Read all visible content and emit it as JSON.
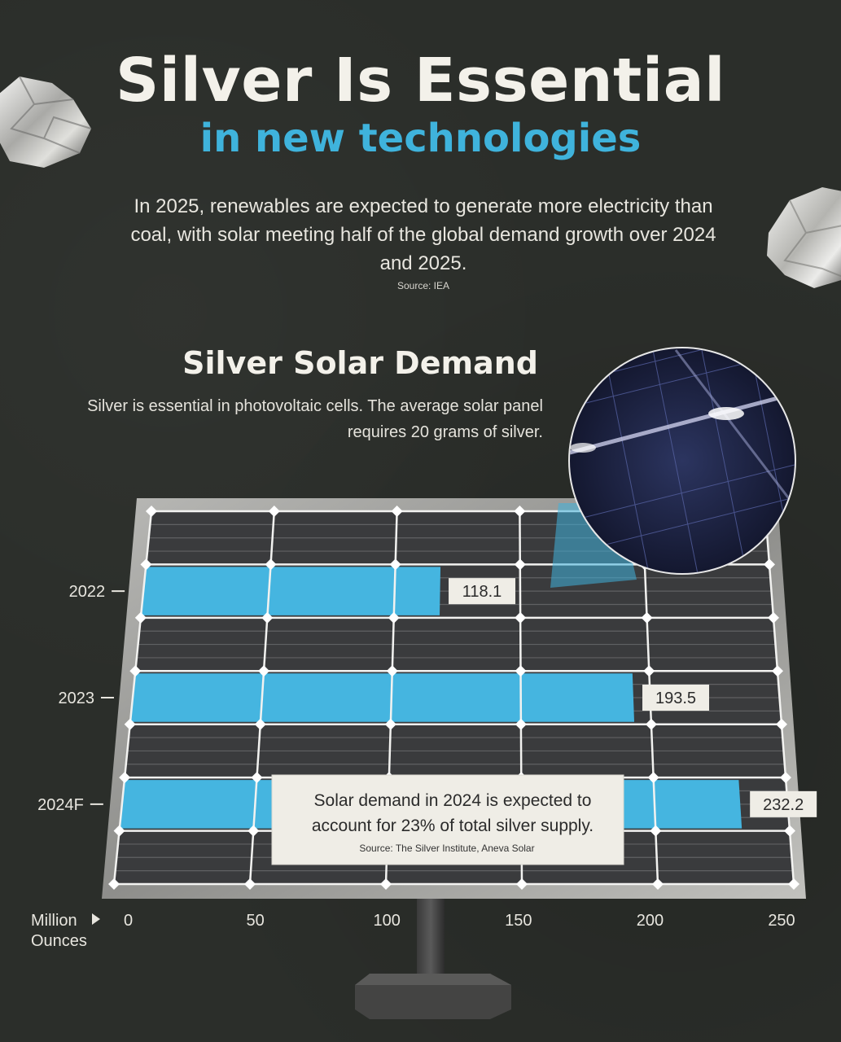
{
  "header": {
    "title": "Silver Is Essential",
    "subtitle": "in new technologies",
    "intro": "In 2025, renewables are expected to generate more electricity than coal, with solar meeting half of the global demand growth over 2024 and 2025.",
    "intro_source": "Source: IEA"
  },
  "section": {
    "title": "Silver Solar Demand",
    "description": "Silver is essential in photovoltaic cells. The average solar panel requires 20 grams of silver."
  },
  "callout": {
    "line1": "Solar demand in 2024 is expected to",
    "line2": "account for 23% of total silver supply.",
    "source": "Source: The Silver Institute, Aneva Solar"
  },
  "axis": {
    "label_line1": "Million",
    "label_line2": "Ounces"
  },
  "colors": {
    "background": "#2b2e2a",
    "accent": "#3fb3dc",
    "bar": "#45b5e0",
    "panel_cell": "#3a3b3d"
  },
  "chart_data": {
    "type": "bar",
    "orientation": "horizontal",
    "categories": [
      "2022",
      "2023",
      "2024F"
    ],
    "values": [
      118.1,
      193.5,
      232.2
    ],
    "value_labels": [
      "118.1",
      "193.5",
      "232.2"
    ],
    "xlabel": "Million Ounces",
    "xlim": [
      0,
      250
    ],
    "xticks": [
      0,
      50,
      100,
      150,
      200,
      250
    ],
    "xtick_labels": [
      "0",
      "50",
      "100",
      "150",
      "200",
      "250"
    ]
  }
}
